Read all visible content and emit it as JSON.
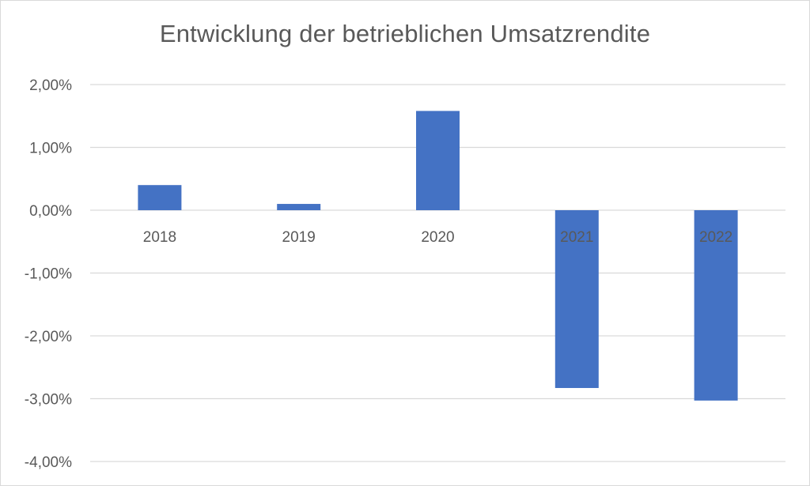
{
  "chart_data": {
    "type": "bar",
    "title": "Entwicklung der betrieblichen Umsatzrendite",
    "xlabel": "",
    "ylabel": "",
    "categories": [
      "2018",
      "2019",
      "2020",
      "2021",
      "2022"
    ],
    "values": [
      0.4,
      0.1,
      1.58,
      -2.83,
      -3.03
    ],
    "value_unit": "%",
    "ylim": [
      -4.0,
      2.0
    ],
    "yticks": [
      2.0,
      1.0,
      0.0,
      -1.0,
      -2.0,
      -3.0,
      -4.0
    ],
    "ytick_labels": [
      "2,00%",
      "1,00%",
      "0,00%",
      "-1,00%",
      "-2,00%",
      "-3,00%",
      "-4,00%"
    ],
    "grid": true,
    "legend": "none",
    "bar_color": "#4472C4"
  }
}
